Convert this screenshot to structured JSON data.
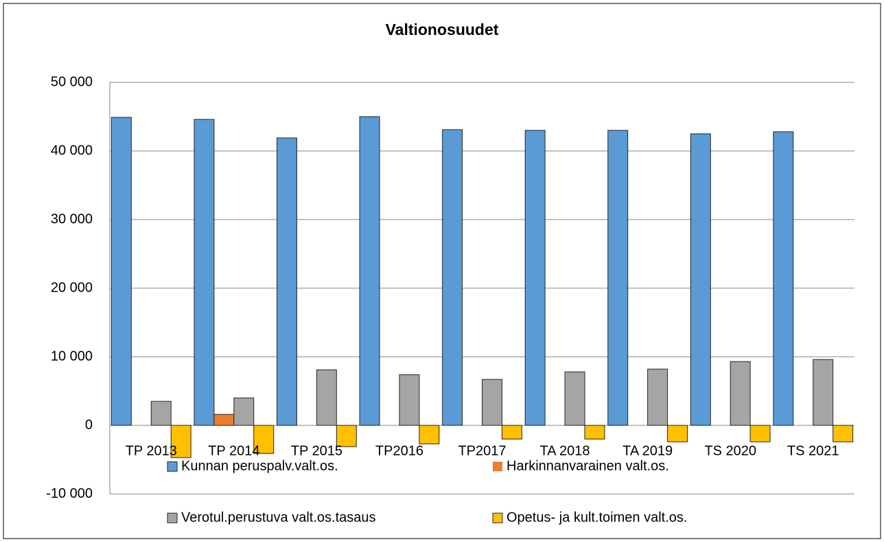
{
  "chart_data": {
    "type": "bar",
    "title": "Valtionosuudet",
    "categories": [
      "TP 2013",
      "TP 2014",
      "TP 2015",
      "TP2016",
      "TP2017",
      "TA 2018",
      "TA 2019",
      "TS 2020",
      "TS 2021"
    ],
    "series": [
      {
        "name": "Kunnan peruspalv.valt.os.",
        "color": "#5b9bd5",
        "values": [
          44900,
          44600,
          41900,
          45000,
          43100,
          43000,
          43000,
          42500,
          42800
        ]
      },
      {
        "name": "Harkinnanvarainen valt.os.",
        "color": "#ed7d31",
        "values": [
          0,
          1600,
          0,
          0,
          0,
          0,
          0,
          0,
          0
        ]
      },
      {
        "name": "Verotul.perustuva valt.os.tasaus",
        "color": "#a5a5a5",
        "values": [
          3500,
          4000,
          8100,
          7400,
          6700,
          7800,
          8200,
          9300,
          9600
        ]
      },
      {
        "name": "Opetus- ja kult.toimen valt.os.",
        "color": "#ffc000",
        "values": [
          -4700,
          -4100,
          -3100,
          -2700,
          -2000,
          -2000,
          -2400,
          -2400,
          -2400
        ]
      }
    ],
    "ylim": [
      -10000,
      50000
    ],
    "yticks": [
      {
        "value": -10000,
        "label": "-10 000"
      },
      0,
      {
        "value": 10000,
        "label": "10 000"
      },
      {
        "value": 20000,
        "label": "20 000"
      },
      {
        "value": 30000,
        "label": "30 000"
      },
      {
        "value": 40000,
        "label": "40 000"
      },
      {
        "value": 50000,
        "label": "50 000"
      }
    ],
    "grid": true,
    "legend": "bottom"
  }
}
